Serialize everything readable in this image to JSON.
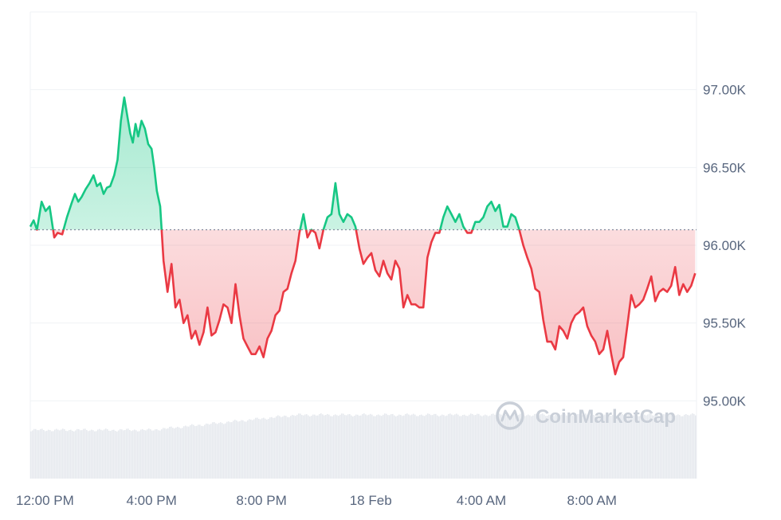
{
  "chart_data": {
    "type": "area",
    "baseline": 96.1,
    "ylim": [
      94.5,
      97.5
    ],
    "y_ticks": [
      95.0,
      95.5,
      96.0,
      96.5,
      97.0
    ],
    "y_tick_labels": [
      "95.00K",
      "95.50K",
      "96.00K",
      "96.50K",
      "97.00K"
    ],
    "x_range": [
      0,
      1
    ],
    "x_ticks": [
      0.022,
      0.182,
      0.347,
      0.511,
      0.677,
      0.843
    ],
    "x_tick_labels": [
      "12:00 PM",
      "4:00 PM",
      "8:00 PM",
      "18 Feb",
      "4:00 AM",
      "8:00 AM"
    ],
    "colors": {
      "up": "#16c784",
      "down": "#ea3943",
      "baseline": "#808a9d",
      "grid": "#eff2f5",
      "volume": "#e6e9ee"
    },
    "series": [
      {
        "values": [
          [
            0.0,
            96.12
          ],
          [
            0.005,
            96.16
          ],
          [
            0.01,
            96.1
          ],
          [
            0.017,
            96.28
          ],
          [
            0.023,
            96.22
          ],
          [
            0.029,
            96.25
          ],
          [
            0.036,
            96.05
          ],
          [
            0.041,
            96.08
          ],
          [
            0.048,
            96.07
          ],
          [
            0.055,
            96.18
          ],
          [
            0.062,
            96.27
          ],
          [
            0.067,
            96.33
          ],
          [
            0.072,
            96.28
          ],
          [
            0.077,
            96.31
          ],
          [
            0.083,
            96.36
          ],
          [
            0.089,
            96.4
          ],
          [
            0.095,
            96.45
          ],
          [
            0.1,
            96.38
          ],
          [
            0.105,
            96.4
          ],
          [
            0.11,
            96.33
          ],
          [
            0.115,
            96.37
          ],
          [
            0.12,
            96.38
          ],
          [
            0.126,
            96.45
          ],
          [
            0.131,
            96.55
          ],
          [
            0.136,
            96.8
          ],
          [
            0.141,
            96.95
          ],
          [
            0.146,
            96.82
          ],
          [
            0.15,
            96.72
          ],
          [
            0.154,
            96.66
          ],
          [
            0.158,
            96.78
          ],
          [
            0.162,
            96.7
          ],
          [
            0.167,
            96.8
          ],
          [
            0.172,
            96.75
          ],
          [
            0.177,
            96.65
          ],
          [
            0.182,
            96.62
          ],
          [
            0.186,
            96.5
          ],
          [
            0.19,
            96.35
          ],
          [
            0.195,
            96.25
          ],
          [
            0.2,
            95.9
          ],
          [
            0.206,
            95.7
          ],
          [
            0.212,
            95.88
          ],
          [
            0.218,
            95.6
          ],
          [
            0.224,
            95.65
          ],
          [
            0.23,
            95.5
          ],
          [
            0.236,
            95.55
          ],
          [
            0.242,
            95.4
          ],
          [
            0.248,
            95.45
          ],
          [
            0.254,
            95.36
          ],
          [
            0.26,
            95.44
          ],
          [
            0.266,
            95.6
          ],
          [
            0.272,
            95.42
          ],
          [
            0.278,
            95.44
          ],
          [
            0.284,
            95.52
          ],
          [
            0.29,
            95.62
          ],
          [
            0.296,
            95.6
          ],
          [
            0.302,
            95.5
          ],
          [
            0.308,
            95.75
          ],
          [
            0.314,
            95.55
          ],
          [
            0.32,
            95.4
          ],
          [
            0.326,
            95.35
          ],
          [
            0.332,
            95.3
          ],
          [
            0.338,
            95.3
          ],
          [
            0.344,
            95.35
          ],
          [
            0.35,
            95.28
          ],
          [
            0.356,
            95.4
          ],
          [
            0.362,
            95.45
          ],
          [
            0.368,
            95.55
          ],
          [
            0.374,
            95.58
          ],
          [
            0.38,
            95.7
          ],
          [
            0.386,
            95.72
          ],
          [
            0.392,
            95.82
          ],
          [
            0.398,
            95.9
          ],
          [
            0.404,
            96.08
          ],
          [
            0.41,
            96.2
          ],
          [
            0.416,
            96.05
          ],
          [
            0.422,
            96.1
          ],
          [
            0.428,
            96.08
          ],
          [
            0.434,
            95.98
          ],
          [
            0.44,
            96.1
          ],
          [
            0.446,
            96.18
          ],
          [
            0.452,
            96.2
          ],
          [
            0.458,
            96.4
          ],
          [
            0.464,
            96.2
          ],
          [
            0.47,
            96.15
          ],
          [
            0.476,
            96.2
          ],
          [
            0.482,
            96.18
          ],
          [
            0.488,
            96.12
          ],
          [
            0.494,
            95.98
          ],
          [
            0.5,
            95.88
          ],
          [
            0.506,
            95.92
          ],
          [
            0.512,
            95.95
          ],
          [
            0.518,
            95.84
          ],
          [
            0.524,
            95.8
          ],
          [
            0.53,
            95.9
          ],
          [
            0.536,
            95.82
          ],
          [
            0.542,
            95.78
          ],
          [
            0.548,
            95.9
          ],
          [
            0.554,
            95.85
          ],
          [
            0.56,
            95.6
          ],
          [
            0.566,
            95.68
          ],
          [
            0.572,
            95.62
          ],
          [
            0.578,
            95.62
          ],
          [
            0.584,
            95.6
          ],
          [
            0.59,
            95.6
          ],
          [
            0.596,
            95.92
          ],
          [
            0.602,
            96.02
          ],
          [
            0.608,
            96.08
          ],
          [
            0.614,
            96.08
          ],
          [
            0.62,
            96.18
          ],
          [
            0.626,
            96.25
          ],
          [
            0.632,
            96.2
          ],
          [
            0.638,
            96.15
          ],
          [
            0.644,
            96.2
          ],
          [
            0.65,
            96.12
          ],
          [
            0.656,
            96.08
          ],
          [
            0.662,
            96.08
          ],
          [
            0.668,
            96.15
          ],
          [
            0.674,
            96.15
          ],
          [
            0.68,
            96.18
          ],
          [
            0.686,
            96.25
          ],
          [
            0.692,
            96.28
          ],
          [
            0.698,
            96.22
          ],
          [
            0.704,
            96.26
          ],
          [
            0.71,
            96.12
          ],
          [
            0.716,
            96.12
          ],
          [
            0.722,
            96.2
          ],
          [
            0.728,
            96.18
          ],
          [
            0.734,
            96.1
          ],
          [
            0.74,
            96.0
          ],
          [
            0.746,
            95.92
          ],
          [
            0.752,
            95.85
          ],
          [
            0.758,
            95.72
          ],
          [
            0.764,
            95.7
          ],
          [
            0.77,
            95.52
          ],
          [
            0.776,
            95.38
          ],
          [
            0.782,
            95.38
          ],
          [
            0.788,
            95.33
          ],
          [
            0.794,
            95.48
          ],
          [
            0.8,
            95.45
          ],
          [
            0.806,
            95.4
          ],
          [
            0.812,
            95.5
          ],
          [
            0.818,
            95.55
          ],
          [
            0.824,
            95.57
          ],
          [
            0.83,
            95.6
          ],
          [
            0.836,
            95.48
          ],
          [
            0.842,
            95.42
          ],
          [
            0.848,
            95.38
          ],
          [
            0.854,
            95.3
          ],
          [
            0.86,
            95.33
          ],
          [
            0.866,
            95.45
          ],
          [
            0.872,
            95.3
          ],
          [
            0.878,
            95.17
          ],
          [
            0.884,
            95.25
          ],
          [
            0.89,
            95.28
          ],
          [
            0.896,
            95.48
          ],
          [
            0.902,
            95.68
          ],
          [
            0.908,
            95.6
          ],
          [
            0.914,
            95.62
          ],
          [
            0.92,
            95.65
          ],
          [
            0.926,
            95.72
          ],
          [
            0.932,
            95.8
          ],
          [
            0.938,
            95.64
          ],
          [
            0.944,
            95.7
          ],
          [
            0.95,
            95.72
          ],
          [
            0.956,
            95.7
          ],
          [
            0.962,
            95.74
          ],
          [
            0.968,
            95.86
          ],
          [
            0.974,
            95.68
          ],
          [
            0.98,
            95.75
          ],
          [
            0.986,
            95.7
          ],
          [
            0.992,
            95.74
          ],
          [
            0.998,
            95.82
          ]
        ]
      }
    ]
  }
}
